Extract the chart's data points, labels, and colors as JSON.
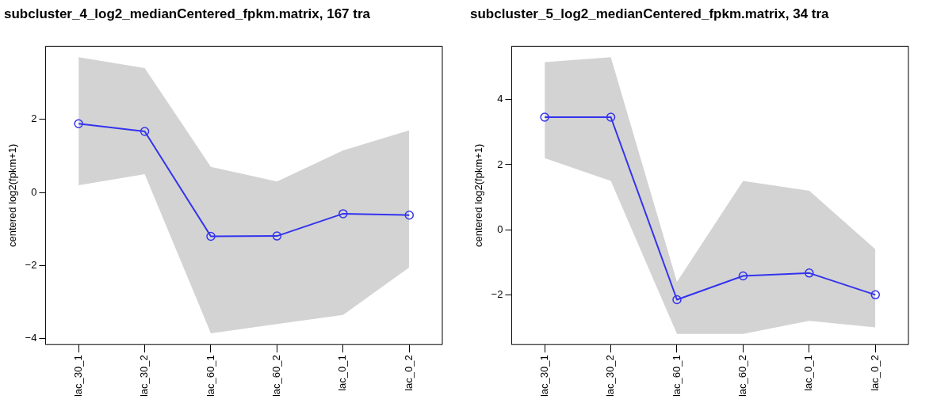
{
  "chart_data": [
    {
      "type": "line",
      "title": "subcluster_4_log2_medianCentered_fpkm.matrix, 167 tra",
      "ylabel": "centered log2(fpkm+1)",
      "categories": [
        "lac_30_1",
        "lac_30_2",
        "lac_60_1",
        "lac_60_2",
        "lac_0_1",
        "lac_0_2"
      ],
      "series": [
        {
          "color": "#3333ee",
          "values": [
            1.88,
            1.67,
            -1.2,
            -1.19,
            -0.58,
            -0.62
          ],
          "lower": [
            0.2,
            0.5,
            -3.85,
            -3.6,
            -3.35,
            -2.05
          ],
          "upper": [
            3.7,
            3.4,
            0.7,
            0.3,
            1.15,
            1.7
          ]
        }
      ],
      "ylim": [
        -4.16,
        4.0
      ],
      "yticks": [
        -4,
        -2,
        0,
        2
      ],
      "grid": false,
      "legend": false,
      "marker": "circle",
      "line_style": "solid"
    },
    {
      "type": "line",
      "title": "subcluster_5_log2_medianCentered_fpkm.matrix, 34 tra",
      "ylabel": "centered log2(fpkm+1)",
      "categories": [
        "lac_30_1",
        "lac_30_2",
        "lac_60_1",
        "lac_60_2",
        "lac_0_1",
        "lac_0_2"
      ],
      "series": [
        {
          "color": "#3333ee",
          "values": [
            3.46,
            3.46,
            -2.15,
            -1.42,
            -1.33,
            -2.0
          ],
          "lower": [
            2.2,
            1.5,
            -3.2,
            -3.2,
            -2.8,
            -3.0
          ],
          "upper": [
            5.15,
            5.3,
            -1.6,
            1.5,
            1.2,
            -0.6
          ]
        }
      ],
      "ylim": [
        -3.53,
        5.64
      ],
      "yticks": [
        -2,
        0,
        2,
        4
      ],
      "grid": false,
      "legend": false,
      "marker": "circle",
      "line_style": "solid"
    }
  ]
}
